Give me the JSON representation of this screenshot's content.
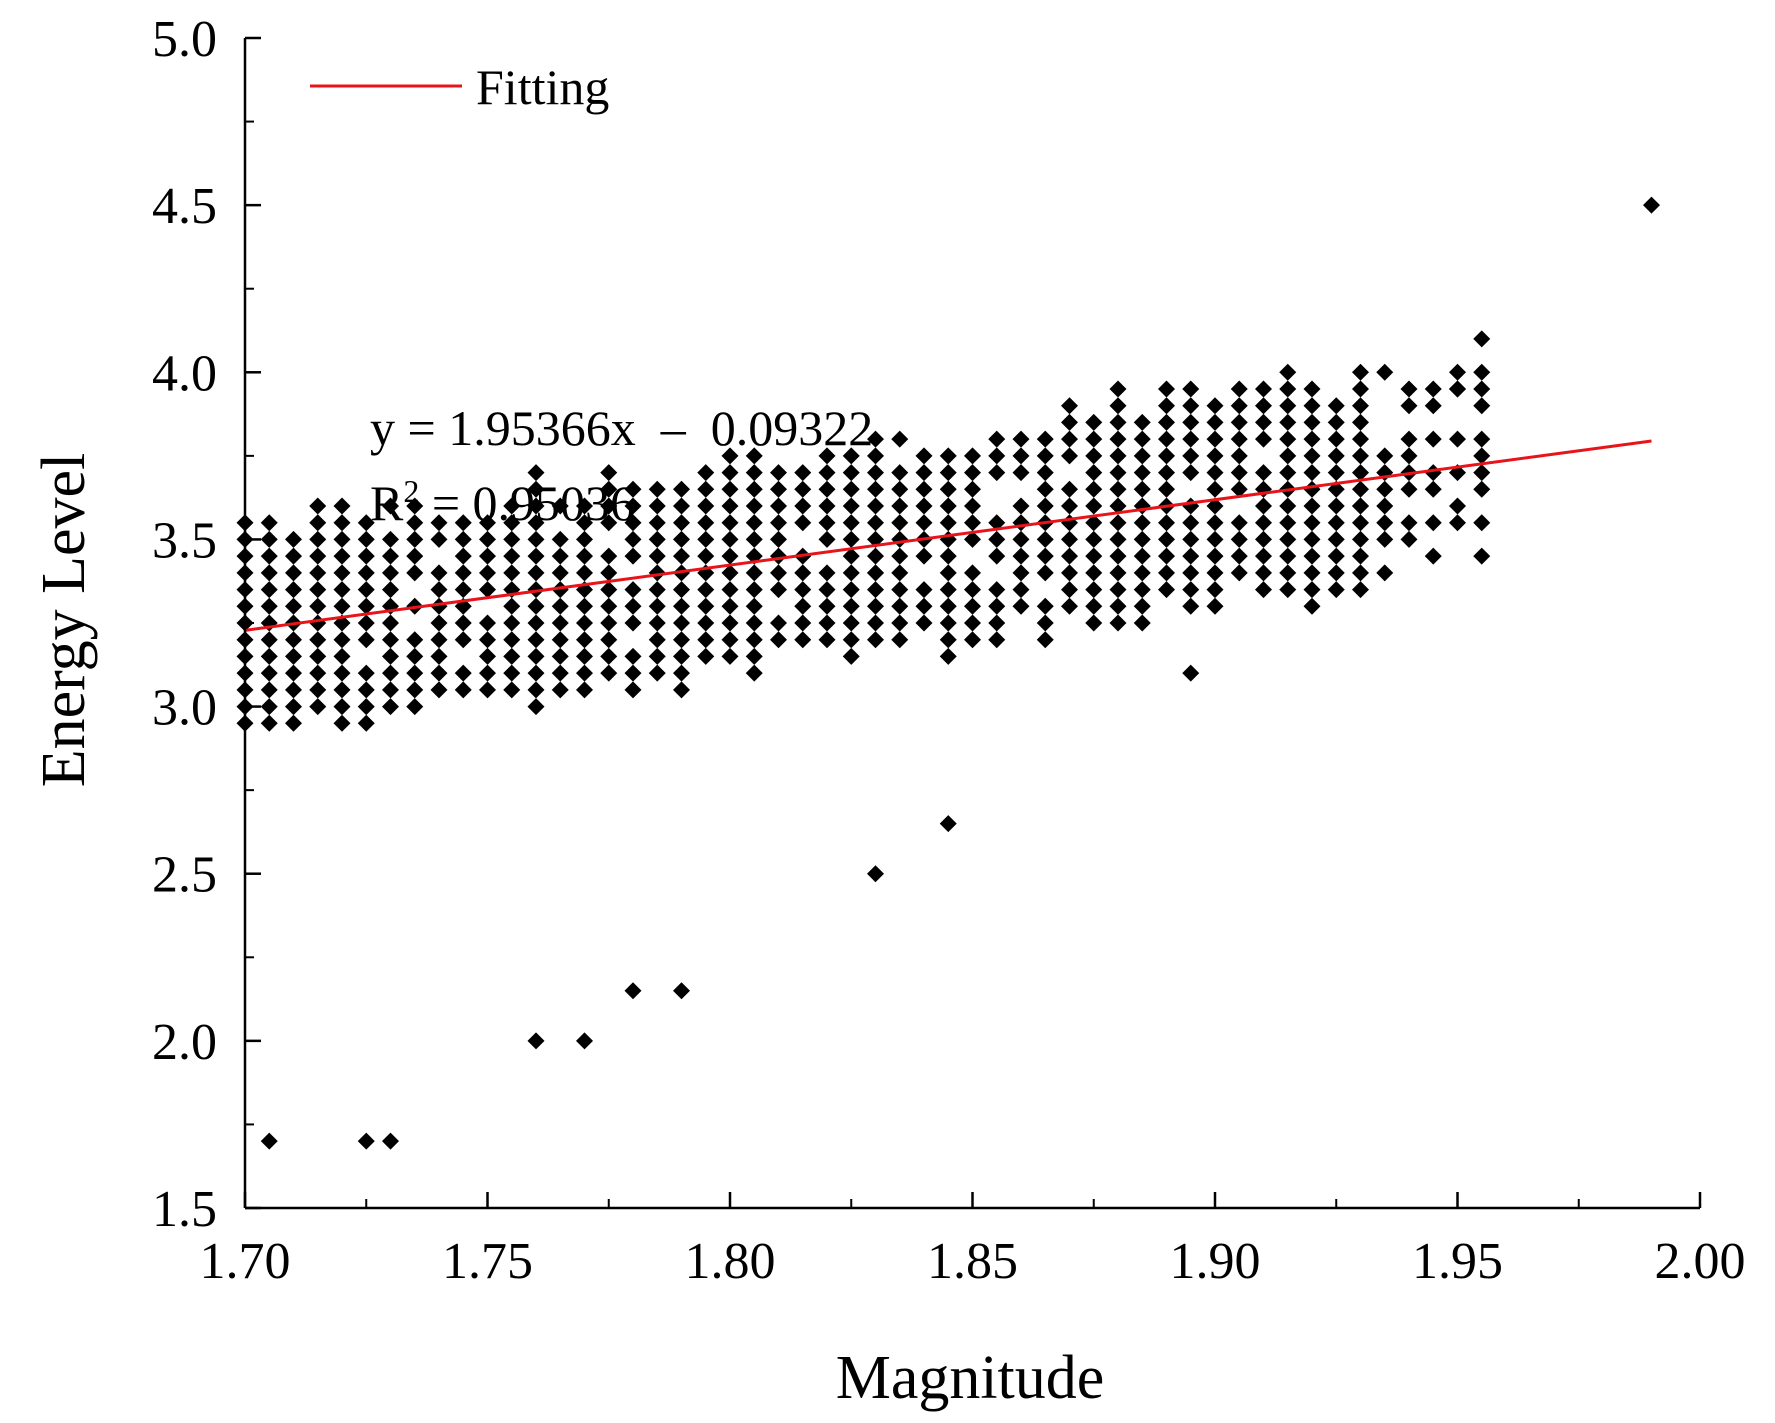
{
  "chart_data": {
    "type": "scatter",
    "title": "",
    "xlabel": "Magnitude",
    "ylabel": "Energy Level",
    "xlim": [
      1.7,
      2.0
    ],
    "ylim": [
      1.5,
      5.0
    ],
    "x_ticks": [
      "1.70",
      "1.75",
      "1.80",
      "1.85",
      "1.90",
      "1.95",
      "2.00"
    ],
    "y_ticks": [
      "1.5",
      "2.0",
      "2.5",
      "3.0",
      "3.5",
      "4.0",
      "4.5",
      "5.0"
    ],
    "grid": false,
    "legend": {
      "position": "top-left",
      "entries": [
        "Fitting"
      ]
    },
    "fit": {
      "slope": 1.95366,
      "intercept": -0.09322,
      "x_range": [
        1.7,
        1.99
      ],
      "color": "#e8141a"
    },
    "annotation": {
      "equation": "y = 1.95366x  –  0.09322",
      "r_label": "R",
      "r_sup": "2",
      "r_value": " = 0.95036"
    },
    "marker_color": "#000000",
    "scatter": {
      "x_step": 0.005,
      "y_step": 0.05,
      "x_range": [
        1.7,
        1.955
      ],
      "band_halfwidth": 0.26,
      "band_center_offset": 0.0
    },
    "outliers": [
      [
        1.99,
        4.5
      ],
      [
        1.95,
        3.95
      ],
      [
        1.92,
        3.3
      ],
      [
        1.93,
        3.6
      ],
      [
        1.79,
        2.15
      ],
      [
        1.78,
        2.15
      ],
      [
        1.83,
        3.4
      ],
      [
        1.845,
        2.65
      ],
      [
        1.77,
        2.0
      ],
      [
        1.76,
        2.0
      ],
      [
        1.83,
        2.5
      ],
      [
        1.895,
        3.1
      ],
      [
        1.955,
        4.1
      ],
      [
        1.935,
        3.7
      ],
      [
        1.94,
        3.7
      ],
      [
        1.725,
        1.7
      ],
      [
        1.73,
        1.7
      ],
      [
        1.705,
        1.7
      ]
    ]
  }
}
